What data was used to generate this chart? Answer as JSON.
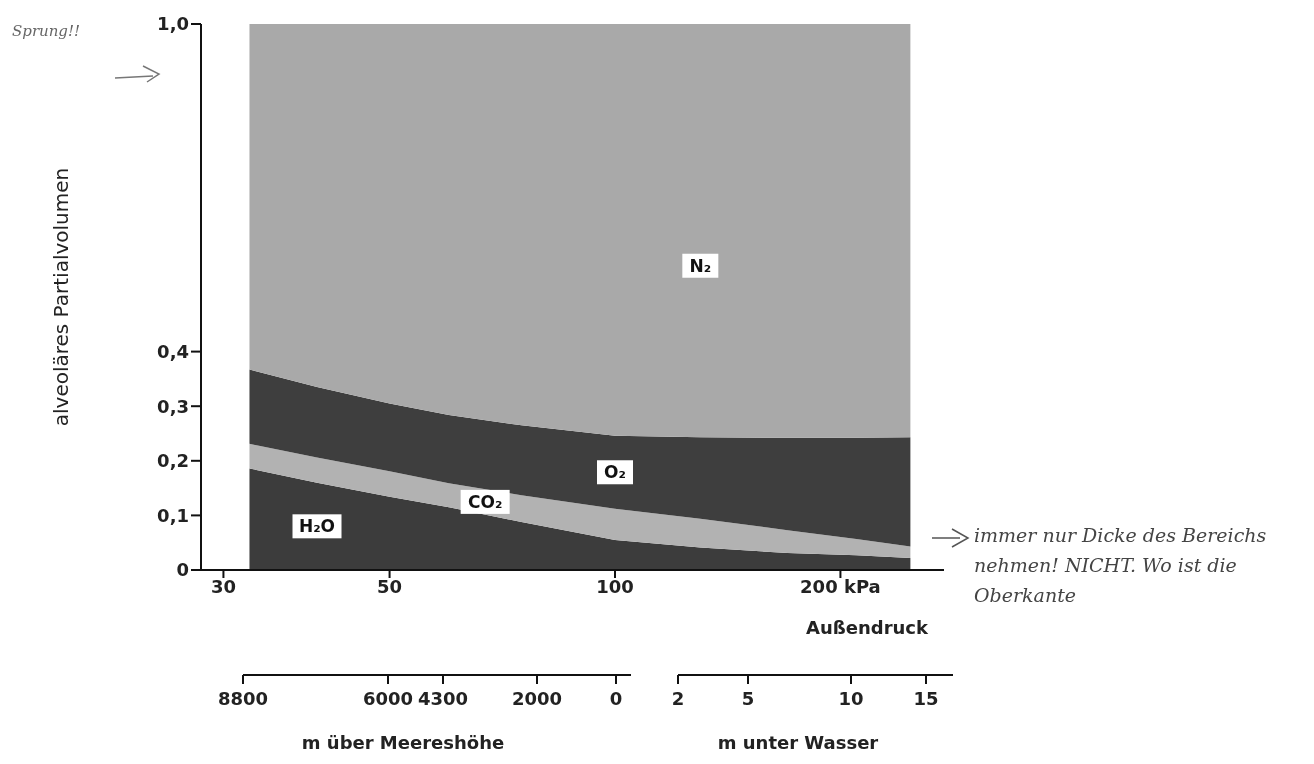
{
  "chart_data": {
    "type": "area",
    "stacked": true,
    "ylabel": "alveoläres Partialvolumen",
    "xlabel": "Außendruck",
    "x": [
      32.5,
      40,
      50,
      60,
      75,
      100,
      130,
      170,
      210,
      248
    ],
    "series": [
      {
        "name": "H₂O",
        "color": "#3c3c3c",
        "values": [
          0.186,
          0.16,
          0.134,
          0.115,
          0.088,
          0.055,
          0.041,
          0.031,
          0.027,
          0.022
        ]
      },
      {
        "name": "CO₂",
        "color": "#b2b2b2",
        "values": [
          0.045,
          0.046,
          0.047,
          0.044,
          0.049,
          0.057,
          0.053,
          0.042,
          0.03,
          0.021
        ]
      },
      {
        "name": "O₂",
        "color": "#3e3e3e",
        "values": [
          0.136,
          0.129,
          0.124,
          0.125,
          0.128,
          0.134,
          0.149,
          0.169,
          0.185,
          0.2
        ]
      },
      {
        "name": "N₂",
        "color": "#a9a9a9",
        "values": [
          0.633,
          0.665,
          0.695,
          0.716,
          0.735,
          0.754,
          0.757,
          0.758,
          0.758,
          0.758
        ]
      }
    ],
    "log": "x",
    "xlim": [
      28,
      275
    ],
    "xticks": [
      30,
      50,
      100,
      {
        "value": 200,
        "label": "200 kPa"
      }
    ],
    "ylim": [
      0,
      1
    ],
    "yticks": [
      0,
      {
        "value": 0.1,
        "label": "0,1"
      },
      {
        "value": 0.2,
        "label": "0,2"
      },
      {
        "value": 0.3,
        "label": "0,3"
      },
      {
        "value": 0.4,
        "label": "0,4"
      },
      {
        "value": 1,
        "label": "1,0"
      }
    ],
    "annotations": [
      "Sprung!!",
      "immer nur Dicke des Bereichs nehmen! NICHT. Wo ist die Oberkante",
      "m über Meereshöhe",
      "m unter Wasser",
      "8800",
      "6000",
      "4300",
      "2000",
      "0",
      "2",
      "5",
      "10",
      "15"
    ]
  }
}
